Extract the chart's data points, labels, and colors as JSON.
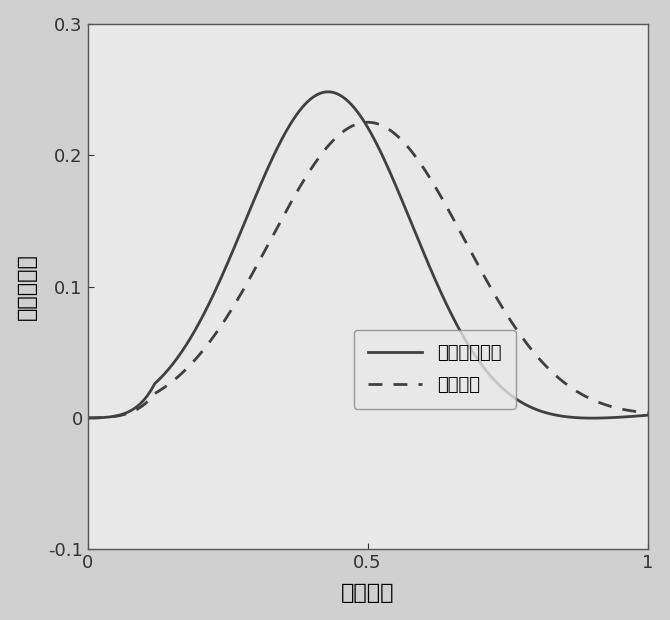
{
  "title": "",
  "xlabel": "标准相位",
  "ylabel": "相位移动量",
  "xlim": [
    0,
    1
  ],
  "ylim": [
    -0.1,
    0.3
  ],
  "xticks": [
    0,
    0.5,
    1
  ],
  "yticks": [
    -0.1,
    0,
    0.1,
    0.2,
    0.3
  ],
  "legend_solid": "仿真测得曲线",
  "legend_dashed": "实际曲线",
  "line_color_solid": "#404040",
  "line_color_dashed": "#404040",
  "bg_color": "#d0d0d0",
  "plot_bg_color": "#e8e8e8"
}
